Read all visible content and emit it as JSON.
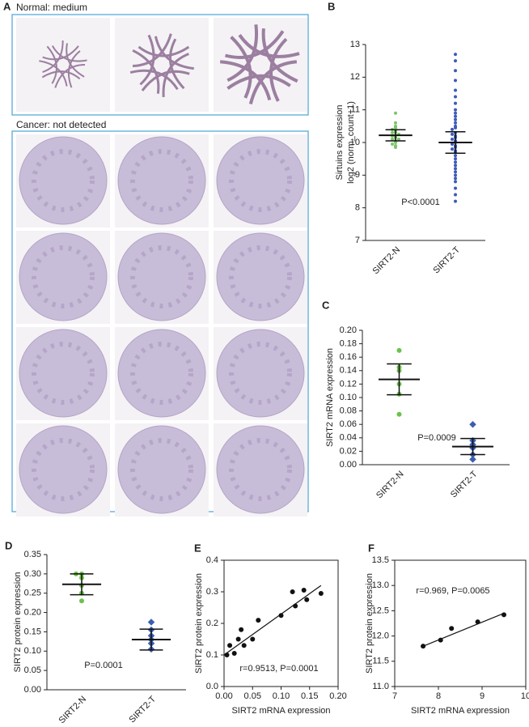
{
  "panel_a": {
    "label": "A",
    "normal_title": "Normal: medium",
    "cancer_title": "Cancer: not detected"
  },
  "chart_data": [
    {
      "type": "dot",
      "panel": "B",
      "ylabel": [
        "Sirtuins expression",
        "log2 (norm_count+1)"
      ],
      "categories": [
        "SIRT2-N",
        "SIRT2-T"
      ],
      "colors": [
        "#7cc46a",
        "#3c5bb8"
      ],
      "points": [
        [
          10.9,
          10.6,
          10.5,
          10.45,
          10.4,
          10.35,
          10.3,
          10.3,
          10.25,
          10.2,
          10.2,
          10.15,
          10.1,
          10.1,
          10.05,
          10.0,
          9.95,
          9.9,
          9.85
        ],
        [
          12.7,
          12.5,
          12.2,
          11.9,
          11.6,
          11.4,
          11.2,
          11.0,
          10.9,
          10.8,
          10.7,
          10.6,
          10.5,
          10.45,
          10.4,
          10.3,
          10.25,
          10.2,
          10.15,
          10.1,
          10.05,
          10.0,
          9.95,
          9.9,
          9.85,
          9.8,
          9.75,
          9.7,
          9.6,
          9.5,
          9.4,
          9.3,
          9.2,
          9.1,
          9.0,
          8.9,
          8.8,
          8.6,
          8.4,
          8.2
        ]
      ],
      "means": [
        10.22,
        10.0
      ],
      "errors": [
        0.17,
        0.33
      ],
      "ylim": [
        7,
        13
      ],
      "yticks": [
        7,
        8,
        9,
        10,
        11,
        12,
        13
      ],
      "annotation": "P<0.0001"
    },
    {
      "type": "dot",
      "panel": "C",
      "ylabel": [
        "SIRT2 mRNA expression"
      ],
      "categories": [
        "SIRT2-N",
        "SIRT2-T"
      ],
      "colors": [
        "#6cc24a",
        "#3a5fb0"
      ],
      "points": [
        [
          0.17,
          0.145,
          0.14,
          0.12,
          0.105,
          0.075
        ],
        [
          0.06,
          0.036,
          0.03,
          0.025,
          0.015,
          0.008
        ]
      ],
      "means": [
        0.127,
        0.027
      ],
      "errors": [
        0.023,
        0.012
      ],
      "ylim": [
        0,
        0.2
      ],
      "yticks": [
        {
          "value": 0,
          "label": "0.00"
        },
        {
          "value": 0.02,
          "label": "0.02"
        },
        {
          "value": 0.04,
          "label": "0.04"
        },
        {
          "value": 0.06,
          "label": "0.06"
        },
        {
          "value": 0.08,
          "label": "0.08"
        },
        {
          "value": 0.1,
          "label": "0.10"
        },
        {
          "value": 0.12,
          "label": "0.12"
        },
        {
          "value": 0.14,
          "label": "0.14"
        },
        {
          "value": 0.16,
          "label": "0.16"
        },
        {
          "value": 0.18,
          "label": "0.18"
        },
        {
          "value": 0.2,
          "label": "0.20"
        }
      ],
      "annotation": "P=0.0009"
    },
    {
      "type": "dot",
      "panel": "D",
      "ylabel": [
        "SIRT2 protein expression"
      ],
      "categories": [
        "SIRT2-N",
        "SIRT2-T"
      ],
      "colors": [
        "#6cc24a",
        "#3a5fb0"
      ],
      "points": [
        [
          0.3,
          0.3,
          0.29,
          0.27,
          0.25,
          0.23
        ],
        [
          0.175,
          0.155,
          0.14,
          0.13,
          0.12,
          0.105
        ]
      ],
      "means": [
        0.273,
        0.13
      ],
      "errors": [
        0.027,
        0.027
      ],
      "ylim": [
        0,
        0.35
      ],
      "yticks": [
        {
          "value": 0,
          "label": "0.00"
        },
        {
          "value": 0.05,
          "label": "0.05"
        },
        {
          "value": 0.1,
          "label": "0.10"
        },
        {
          "value": 0.15,
          "label": "0.15"
        },
        {
          "value": 0.2,
          "label": "0.20"
        },
        {
          "value": 0.25,
          "label": "0.25"
        },
        {
          "value": 0.3,
          "label": "0.30"
        },
        {
          "value": 0.35,
          "label": "0.35"
        }
      ],
      "annotation": "P=0.0001"
    },
    {
      "type": "scatter",
      "panel": "E",
      "xlabel": "SIRT2 mRNA expression",
      "ylabel": [
        "SIRT2 protein expression"
      ],
      "color": "#111111",
      "x": [
        0.005,
        0.01,
        0.018,
        0.025,
        0.03,
        0.035,
        0.05,
        0.06,
        0.1,
        0.12,
        0.125,
        0.14,
        0.145,
        0.17
      ],
      "values": [
        0.1,
        0.13,
        0.105,
        0.15,
        0.18,
        0.13,
        0.15,
        0.21,
        0.225,
        0.3,
        0.255,
        0.305,
        0.275,
        0.295
      ],
      "fit": {
        "x": [
          0,
          0.17
        ],
        "values": [
          0.1,
          0.32
        ]
      },
      "xlim": [
        0,
        0.2
      ],
      "xticks": [
        {
          "value": 0,
          "label": "0.00"
        },
        {
          "value": 0.05,
          "label": "0.05"
        },
        {
          "value": 0.1,
          "label": "0.10"
        },
        {
          "value": 0.15,
          "label": "0.15"
        },
        {
          "value": 0.2,
          "label": "0.20"
        }
      ],
      "ylim": [
        0,
        0.4
      ],
      "yticks": [
        {
          "value": 0,
          "label": "0.0"
        },
        0.1,
        0.2,
        0.3,
        0.4
      ],
      "annotation": "r=0.9513, P=0.0001"
    },
    {
      "type": "scatter",
      "panel": "F",
      "xlabel": "SIRT2 mRNA expression",
      "ylabel": [
        "SIRT2 protein expression"
      ],
      "color": "#111111",
      "x": [
        7.65,
        8.05,
        8.3,
        8.9,
        9.5
      ],
      "values": [
        11.8,
        11.92,
        12.15,
        12.28,
        12.42
      ],
      "fit": {
        "x": [
          7.6,
          9.5
        ],
        "values": [
          11.78,
          12.45
        ]
      },
      "xlim": [
        7,
        10
      ],
      "xticks": [
        7,
        8,
        9,
        10
      ],
      "ylim": [
        11,
        13.5
      ],
      "yticks": [
        {
          "value": 11,
          "label": "11.0"
        },
        11.5,
        {
          "value": 12,
          "label": "12.0"
        },
        12.5,
        {
          "value": 13,
          "label": "13.0"
        },
        13.5
      ],
      "annotation": "r=0.969, P=0.0065"
    }
  ]
}
